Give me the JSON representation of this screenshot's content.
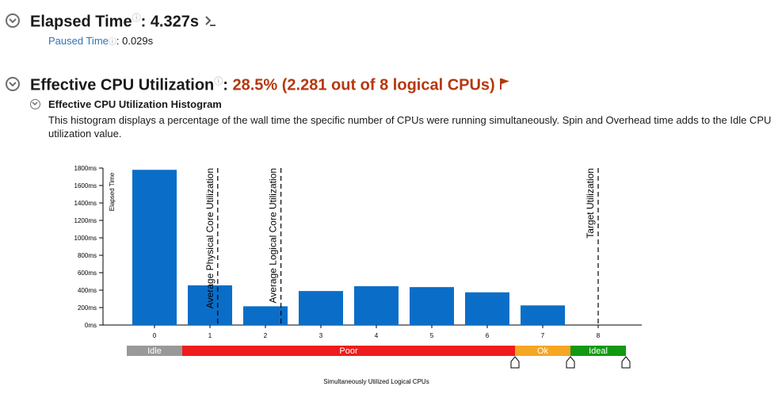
{
  "elapsed": {
    "label": "Elapsed Time",
    "help_mark": "⓪",
    "colon": ":",
    "value": "4.327s",
    "paused_label": "Paused Time",
    "paused_value": "0.029s"
  },
  "cpu": {
    "label": "Effective CPU Utilization",
    "colon": ":",
    "value": "28.5% (2.281 out of 8 logical CPUs)",
    "histogram_title": "Effective CPU Utilization Histogram",
    "description": "This histogram displays a percentage of the wall time the specific number of CPUs were running simultaneously. Spin and Overhead time adds to the Idle CPU utilization value."
  },
  "icons": {
    "collapse": "chevron-down-icon",
    "help": "help-circle-icon",
    "terminal": "terminal-prompt-icon",
    "flag": "flag-icon"
  },
  "colors": {
    "bar": "#0a6ec8",
    "idle": "#999999",
    "poor": "#ee1c1c",
    "ok": "#f5a623",
    "ideal": "#119911",
    "accent_red": "#b5380e"
  },
  "chart_data": {
    "type": "bar",
    "ylabel": "Elapsed Time",
    "xlabel": "Simultaneously Utilized Logical CPUs",
    "ylim": [
      0,
      1800
    ],
    "ytick_labels": [
      "0ms",
      "200ms",
      "400ms",
      "600ms",
      "800ms",
      "1000ms",
      "1200ms",
      "1400ms",
      "1600ms",
      "1800ms"
    ],
    "categories": [
      "0",
      "1",
      "2",
      "3",
      "4",
      "5",
      "6",
      "7",
      "8"
    ],
    "values": [
      1780,
      455,
      215,
      390,
      445,
      435,
      375,
      225,
      0
    ],
    "markers": [
      {
        "label": "Average Physical Core Utilization",
        "x": 1.14
      },
      {
        "label": "Average Logical Core Utilization",
        "x": 2.28
      },
      {
        "label": "Target Utilization",
        "x": 8.0
      }
    ],
    "bands": [
      {
        "label": "Idle",
        "from": -0.5,
        "to": 0.5,
        "color": "#999999"
      },
      {
        "label": "Poor",
        "from": 0.5,
        "to": 6.5,
        "color": "#ee1c1c"
      },
      {
        "label": "Ok",
        "from": 6.5,
        "to": 7.5,
        "color": "#f5a623"
      },
      {
        "label": "Ideal",
        "from": 7.5,
        "to": 8.5,
        "color": "#119911"
      }
    ],
    "band_handles": [
      6.5,
      7.5,
      8.5
    ]
  }
}
